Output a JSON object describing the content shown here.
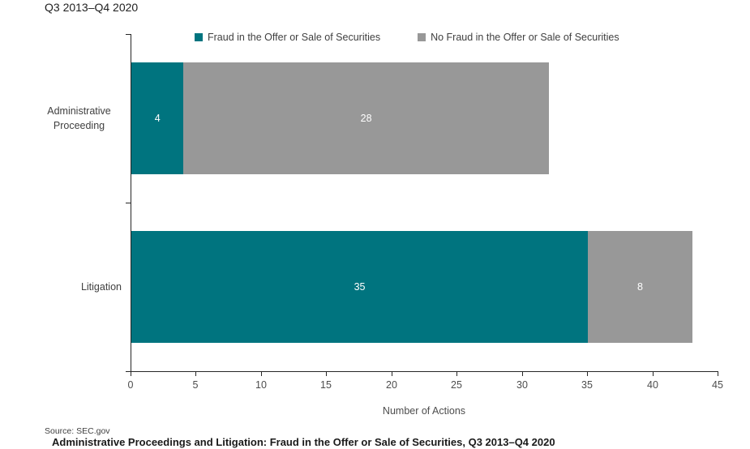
{
  "figure": {
    "title": "Q3 2013–Q4 2020",
    "source": "Source: SEC.gov",
    "cropped_bottom_text": "Administrative Proceedings and Litigation: Fraud in the Offer or Sale of Securities, Q3 2013–Q4 2020"
  },
  "colors": {
    "fraud_teal": "#00747F",
    "no_fraud_gray": "#989898",
    "axis": "#262626",
    "text": "#404040"
  },
  "chart_data": {
    "type": "bar",
    "orientation": "horizontal-stacked",
    "title": "Q3 2013–Q4 2020",
    "categories": [
      "Administrative Proceeding",
      "Litigation"
    ],
    "series": [
      {
        "name": "Fraud in the Offer or Sale of Securities",
        "color": "#00747F",
        "values": [
          4,
          35
        ]
      },
      {
        "name": "No Fraud in the Offer or Sale of Securities",
        "color": "#989898",
        "values": [
          28,
          8
        ]
      }
    ],
    "totals": [
      32,
      43
    ],
    "xlabel": "Number of Actions",
    "ylabel": "",
    "xlim": [
      0,
      45
    ],
    "xticks": [
      0,
      5,
      10,
      15,
      20,
      25,
      30,
      35,
      40,
      45
    ],
    "legend_position": "top",
    "grid": false,
    "value_labels": "inside-center-white",
    "source": "Source: SEC.gov"
  }
}
